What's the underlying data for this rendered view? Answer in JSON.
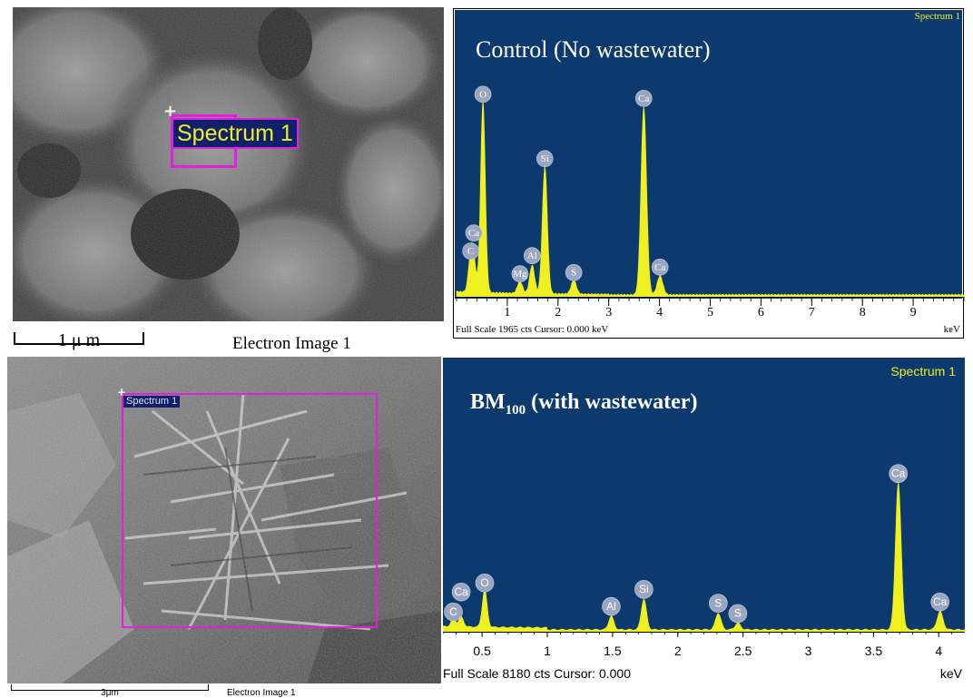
{
  "top_sem": {
    "spectrum_label": "Spectrum 1",
    "scale_label": "1 μ m",
    "caption": "Electron Image 1"
  },
  "bottom_sem": {
    "spectrum_label": "Spectrum 1",
    "scale_label": "3μm",
    "caption": "Electron Image 1"
  },
  "chart_data": [
    {
      "type": "line",
      "title": "Control (No wastewater)",
      "spectrum_tag": "Spectrum 1",
      "footer_left": "Full Scale 1965 cts  Cursor: 0.000 keV",
      "xlabel": "keV",
      "xlim": [
        0,
        10
      ],
      "ylim": [
        0,
        1965
      ],
      "xticks": [
        "1",
        "2",
        "3",
        "4",
        "5",
        "6",
        "7",
        "8",
        "9"
      ],
      "colors": {
        "plot_bg": "#0d3a6e",
        "peak": "#f0f020",
        "marker": "#9aa6c0"
      },
      "peaks": [
        {
          "element": "C",
          "x": 0.28,
          "y": 260
        },
        {
          "element": "Ca",
          "x": 0.34,
          "y": 200
        },
        {
          "element": "O",
          "x": 0.52,
          "y": 1430
        },
        {
          "element": "Mg",
          "x": 1.25,
          "y": 90
        },
        {
          "element": "Al",
          "x": 1.49,
          "y": 210
        },
        {
          "element": "Si",
          "x": 1.74,
          "y": 950
        },
        {
          "element": "S",
          "x": 2.31,
          "y": 100
        },
        {
          "element": "Ca",
          "x": 3.69,
          "y": 1400
        },
        {
          "element": "Ca",
          "x": 4.01,
          "y": 140
        }
      ]
    },
    {
      "type": "line",
      "title": "BM",
      "title_sub": "100",
      "title_rest": " (with wastewater)",
      "spectrum_tag": "Spectrum 1",
      "footer_left": "Full Scale 8180 cts Cursor: 0.000",
      "xlabel": "keV",
      "xlim": [
        0.2,
        4.2
      ],
      "ylim": [
        0,
        8180
      ],
      "xticks": [
        "0.5",
        "1",
        "1.5",
        "2",
        "2.5",
        "3",
        "3.5",
        "4"
      ],
      "colors": {
        "plot_bg": "#0d3a6e",
        "peak": "#f0f020",
        "marker": "#9aa6c0"
      },
      "peaks": [
        {
          "element": "C",
          "x": 0.28,
          "y": 250
        },
        {
          "element": "Ca",
          "x": 0.34,
          "y": 300
        },
        {
          "element": "O",
          "x": 0.52,
          "y": 1150
        },
        {
          "element": "Al",
          "x": 1.49,
          "y": 420
        },
        {
          "element": "Si",
          "x": 1.74,
          "y": 950
        },
        {
          "element": "S",
          "x": 2.31,
          "y": 520
        },
        {
          "element": "S",
          "x": 2.46,
          "y": 200
        },
        {
          "element": "Ca",
          "x": 3.69,
          "y": 4550
        },
        {
          "element": "Ca",
          "x": 4.01,
          "y": 560
        }
      ]
    }
  ]
}
